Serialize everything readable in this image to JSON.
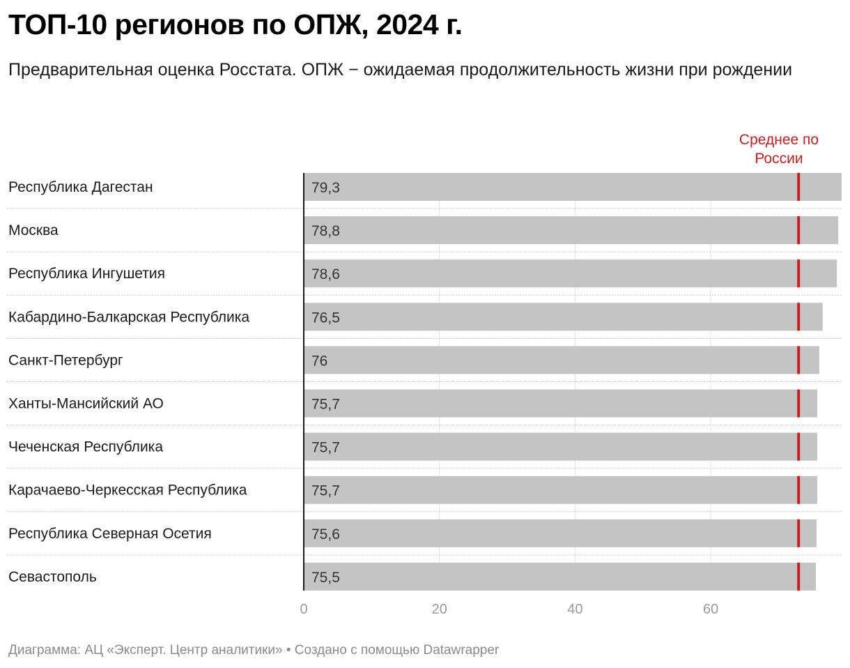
{
  "header": {
    "title": "ТОП-10 регионов по ОПЖ, 2024 г.",
    "subtitle": "Предварительная оценка Росстата. ОПЖ − ожидаемая продолжительность жизни при рождении"
  },
  "footer": {
    "text": "Диаграмма: АЦ «Эксперт. Центр аналитики» • Создано с помощью Datawrapper"
  },
  "chart_data": {
    "type": "bar",
    "orientation": "horizontal",
    "title": "ТОП-10 регионов по ОПЖ, 2024 г.",
    "categories": [
      "Республика Дагестан",
      "Москва",
      "Республика Ингушетия",
      "Кабардино-Балкарская Республика",
      "Санкт-Петербург",
      "Ханты-Мансийский АО",
      "Чеченская Республика",
      "Карачаево-Черкесская Республика",
      "Республика Северная Осетия",
      "Севастополь"
    ],
    "values": [
      79.3,
      78.8,
      78.6,
      76.5,
      76,
      75.7,
      75.7,
      75.7,
      75.6,
      75.5
    ],
    "value_labels": [
      "79,3",
      "78,8",
      "78,6",
      "76,5",
      "76",
      "75,7",
      "75,7",
      "75,7",
      "75,6",
      "75,5"
    ],
    "xlim": [
      0,
      79.3
    ],
    "xticks": [
      0,
      20,
      40,
      60
    ],
    "xtick_labels": [
      "0",
      "20",
      "40",
      "60"
    ],
    "reference_line": {
      "label": "Среднее по России",
      "value": 72.9,
      "color": "#c81e1e"
    },
    "bar_color": "#c4c4c4",
    "grid": true
  }
}
